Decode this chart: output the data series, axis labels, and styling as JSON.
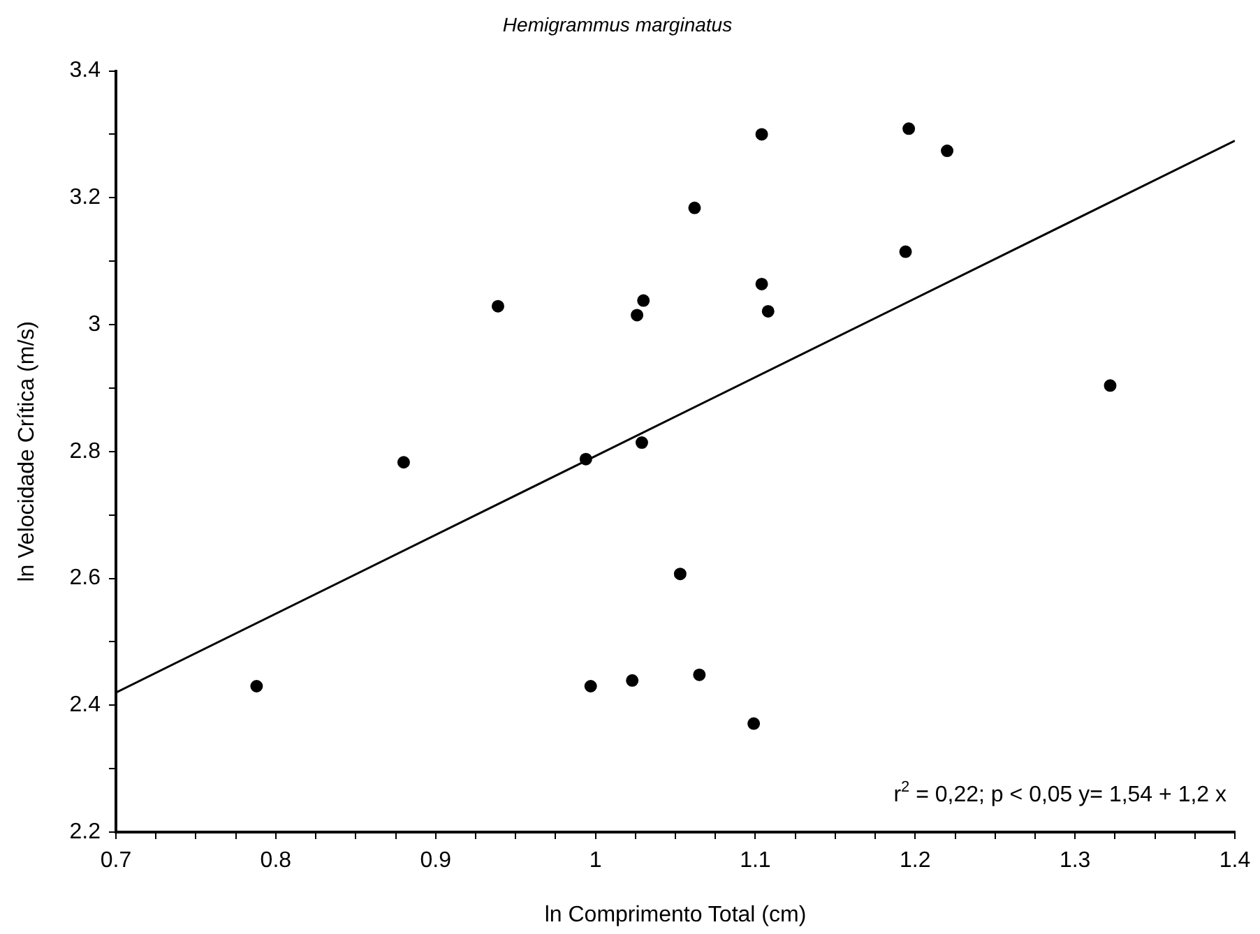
{
  "chart_data": {
    "type": "scatter",
    "title": "Hemigrammus marginatus",
    "xlabel": "ln Comprimento Total (cm)",
    "ylabel": "ln Velocidade Crítica (m/s)",
    "annotations": [
      "r$^{2}$ = 0,22; p < 0,05 y= 1,54 + 1,2 x"
    ],
    "series": [
      {
        "color": "#000000",
        "x": [
          0.788,
          0.88,
          0.939,
          0.994,
          0.997,
          1.023,
          1.026,
          1.029,
          1.03,
          1.053,
          1.062,
          1.065,
          1.099,
          1.104,
          1.104,
          1.108,
          1.194,
          1.196,
          1.22,
          1.322
        ],
        "values": [
          2.43,
          2.783,
          3.029,
          2.788,
          2.43,
          2.439,
          3.015,
          2.814,
          3.038,
          2.607,
          3.184,
          2.448,
          2.371,
          3.3,
          3.064,
          3.021,
          3.115,
          3.309,
          3.274,
          2.904
        ]
      },
      {
        "type": "line",
        "color": "#000000",
        "marker": "none",
        "x": [
          0.7,
          1.4
        ],
        "values": [
          2.42,
          3.29
        ]
      }
    ],
    "xlim": [
      0.7,
      1.4
    ],
    "xticks": [
      0.7,
      {
        "value": 0.725,
        "label": null
      },
      {
        "value": 0.75,
        "label": null
      },
      {
        "value": 0.775,
        "label": null
      },
      0.8,
      {
        "value": 0.825,
        "label": null
      },
      {
        "value": 0.85,
        "label": null
      },
      {
        "value": 0.875,
        "label": null
      },
      0.9,
      {
        "value": 0.925,
        "label": null
      },
      {
        "value": 0.95,
        "label": null
      },
      {
        "value": 0.975,
        "label": null
      },
      1,
      {
        "value": 1.025,
        "label": null
      },
      {
        "value": 1.05,
        "label": null
      },
      {
        "value": 1.075,
        "label": null
      },
      1.1,
      {
        "value": 1.125,
        "label": null
      },
      {
        "value": 1.15,
        "label": null
      },
      {
        "value": 1.175,
        "label": null
      },
      1.2,
      {
        "value": 1.225,
        "label": null
      },
      {
        "value": 1.25,
        "label": null
      },
      {
        "value": 1.275,
        "label": null
      },
      1.3,
      {
        "value": 1.325,
        "label": null
      },
      {
        "value": 1.35,
        "label": null
      },
      {
        "value": 1.375,
        "label": null
      },
      1.4
    ],
    "ylim": [
      2.2,
      3.4
    ],
    "yticks": [
      2.2,
      {
        "value": 2.3,
        "label": null
      },
      2.4,
      {
        "value": 2.5,
        "label": null
      },
      2.6,
      {
        "value": 2.7,
        "label": null
      },
      2.8,
      {
        "value": 2.9,
        "label": null
      },
      3,
      {
        "value": 3.1,
        "label": null
      },
      3.2,
      {
        "value": 3.3,
        "label": null
      },
      3.4
    ],
    "grid": false,
    "legend": false,
    "marker": "circle",
    "line_style": "solid"
  }
}
